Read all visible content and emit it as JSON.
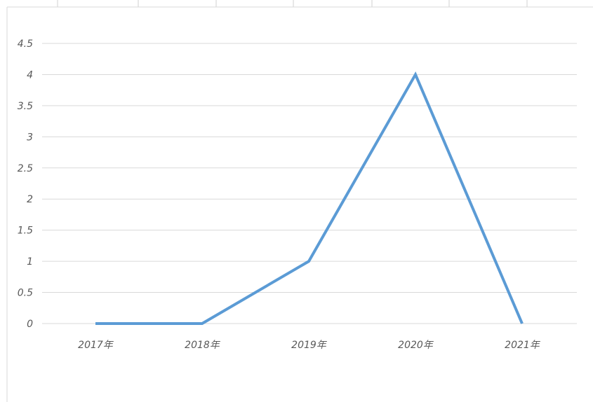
{
  "chart_data": {
    "type": "line",
    "categories": [
      "2017年",
      "2018年",
      "2019年",
      "2020年",
      "2021年"
    ],
    "series": [
      {
        "values": [
          0,
          0,
          1,
          4,
          0
        ],
        "color": "#5b9bd5"
      }
    ],
    "ylim": [
      0,
      4.5
    ],
    "yticks": [
      "0",
      "0.5",
      "1",
      "1.5",
      "2",
      "2.5",
      "3",
      "3.5",
      "4",
      "4.5"
    ],
    "grid": true,
    "legend": false
  }
}
